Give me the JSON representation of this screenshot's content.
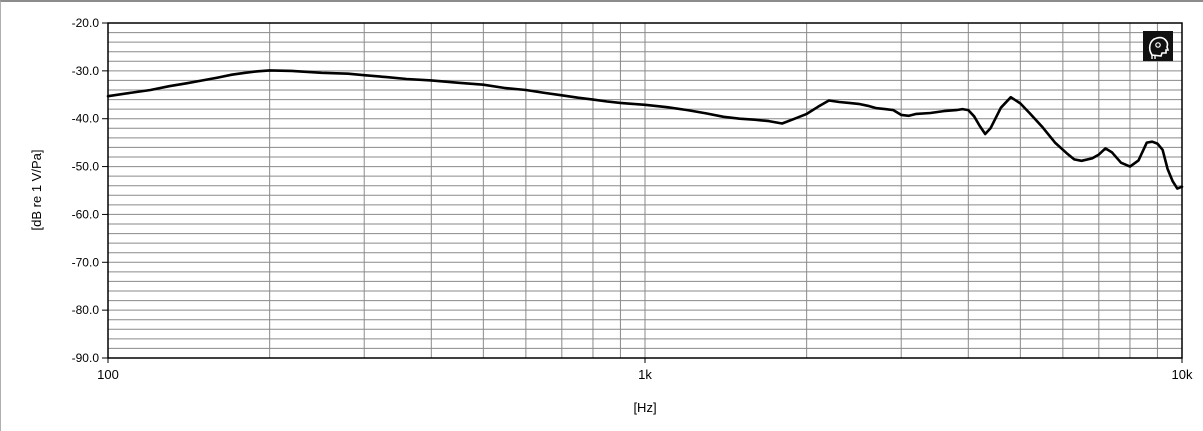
{
  "chart_data": {
    "type": "line",
    "xlabel": "[Hz]",
    "ylabel": "[dB re 1 V/Pa]",
    "xscale": "log",
    "xlim": [
      100,
      10000
    ],
    "ylim": [
      -90,
      -20
    ],
    "y_ticks": [
      -20,
      -30,
      -40,
      -50,
      -60,
      -70,
      -80,
      -90
    ],
    "y_tick_labels": [
      "-20.0",
      "-30.0",
      "-40.0",
      "-50.0",
      "-60.0",
      "-70.0",
      "-80.0",
      "-90.0"
    ],
    "x_ticks": [
      100,
      1000,
      10000
    ],
    "x_tick_labels": [
      "100",
      "1k",
      "10k"
    ],
    "grid": true,
    "legend": "none",
    "line_color": "#000000",
    "grid_color": "#8a8a8a",
    "series": [
      {
        "x": [
          100,
          110,
          120,
          130,
          140,
          150,
          160,
          170,
          180,
          190,
          200,
          220,
          250,
          280,
          300,
          330,
          360,
          400,
          450,
          500,
          550,
          600,
          650,
          700,
          750,
          800,
          850,
          900,
          950,
          1000,
          1100,
          1200,
          1300,
          1400,
          1500,
          1600,
          1700,
          1800,
          1900,
          2000,
          2100,
          2200,
          2300,
          2400,
          2500,
          2600,
          2700,
          2800,
          2900,
          3000,
          3100,
          3200,
          3400,
          3600,
          3800,
          3900,
          4000,
          4100,
          4200,
          4300,
          4400,
          4600,
          4800,
          5000,
          5200,
          5500,
          5800,
          6100,
          6300,
          6500,
          6800,
          7000,
          7200,
          7400,
          7700,
          8000,
          8300,
          8600,
          8800,
          9000,
          9200,
          9400,
          9600,
          9800,
          10000
        ],
        "y": [
          -35.3,
          -34.6,
          -34.0,
          -33.2,
          -32.6,
          -32.0,
          -31.4,
          -30.8,
          -30.4,
          -30.1,
          -29.9,
          -30.0,
          -30.4,
          -30.6,
          -30.9,
          -31.3,
          -31.7,
          -32.0,
          -32.5,
          -32.9,
          -33.6,
          -34.0,
          -34.6,
          -35.1,
          -35.6,
          -36.0,
          -36.4,
          -36.7,
          -36.9,
          -37.1,
          -37.6,
          -38.2,
          -38.9,
          -39.6,
          -40.0,
          -40.2,
          -40.5,
          -41.0,
          -40.0,
          -39.0,
          -37.5,
          -36.2,
          -36.5,
          -36.7,
          -36.9,
          -37.3,
          -37.8,
          -38.0,
          -38.2,
          -39.2,
          -39.4,
          -39.0,
          -38.8,
          -38.4,
          -38.2,
          -38.0,
          -38.2,
          -39.5,
          -41.5,
          -43.2,
          -42.0,
          -37.7,
          -35.5,
          -36.8,
          -38.8,
          -41.8,
          -45.0,
          -47.2,
          -48.5,
          -48.8,
          -48.3,
          -47.5,
          -46.2,
          -47.0,
          -49.2,
          -50.0,
          -48.7,
          -45.0,
          -44.8,
          -45.2,
          -46.5,
          -50.5,
          -53.0,
          -54.6,
          -54.2
        ]
      }
    ]
  }
}
